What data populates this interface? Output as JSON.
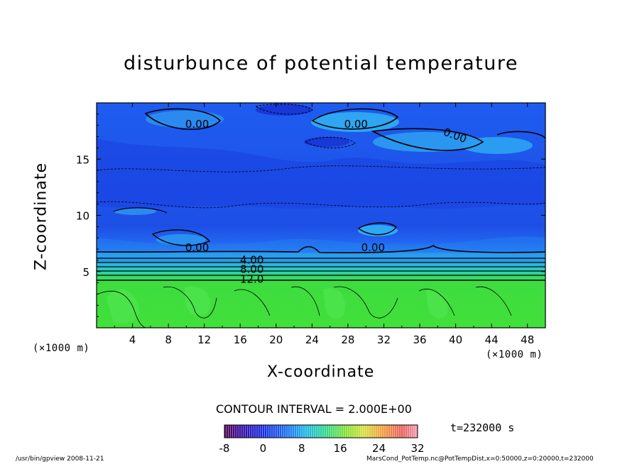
{
  "chart_data": {
    "type": "heatmap",
    "title": "disturbunce of potential temperature",
    "xlabel": "X-coordinate",
    "ylabel": "Z-coordinate",
    "x_unit": "(×1000 m)",
    "y_unit": "(×1000 m)",
    "xlim": [
      0,
      50
    ],
    "ylim": [
      0,
      20
    ],
    "x_ticks": [
      4,
      8,
      12,
      16,
      20,
      24,
      28,
      32,
      36,
      40,
      44,
      48
    ],
    "y_ticks": [
      5,
      10,
      15
    ],
    "contour_labels": [
      "0.00",
      "0.00",
      "0.00",
      "0.00",
      "0.00",
      "4.00",
      "8.00",
      "12.0"
    ],
    "contour_interval": "CONTOUR INTERVAL = 2.000E+00",
    "colorbar": {
      "ticks": [
        "-8",
        "0",
        "8",
        "16",
        "24",
        "32"
      ],
      "range": [
        -8,
        32
      ]
    },
    "layers": [
      {
        "z_range": [
          0,
          4.3
        ],
        "value_approx": 13,
        "description_color": "#33dd22"
      },
      {
        "z_range": [
          4.3,
          7
        ],
        "value_approx": "4 to 12",
        "description_color": "#22aacc"
      },
      {
        "z_range": [
          7,
          20
        ],
        "value_approx": "-2 to 0",
        "description_color": "#1a55ee"
      }
    ],
    "time_label": "t=232000 s"
  },
  "footer": {
    "left": "/usr/bin/gpview   2008-11-21",
    "right": "MarsCond_PotTemp.nc@PotTempDist,x=0:50000,z=0:20000,t=232000"
  },
  "colors": {
    "deep_blue": "#1a3fe0",
    "mid_blue": "#1f66f0",
    "light_blue": "#2aa0f0",
    "cyan": "#22c8d8",
    "green": "#33dd22"
  }
}
